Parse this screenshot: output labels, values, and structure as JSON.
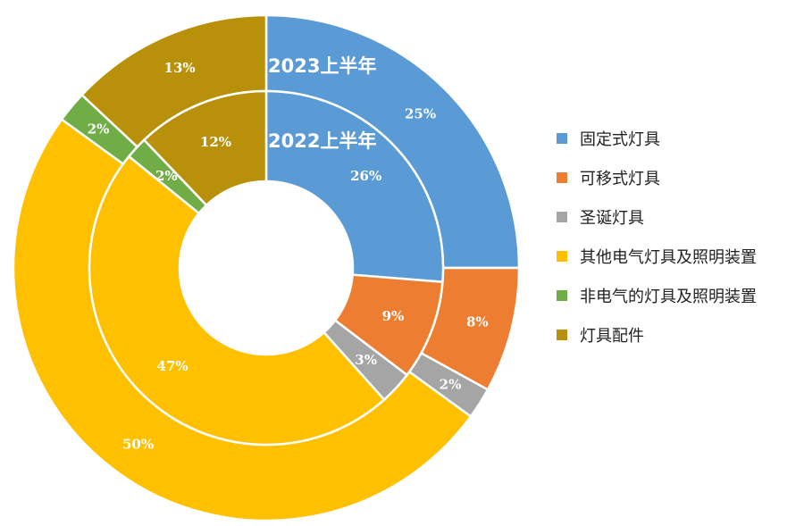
{
  "chart_data": {
    "type": "pie",
    "rings": [
      {
        "name": "2023上半年",
        "values": [
          25,
          8,
          2,
          50,
          2,
          13
        ],
        "labels": [
          "25%",
          "8%",
          "2%",
          "50%",
          "2%",
          "13%"
        ]
      },
      {
        "name": "2022上半年",
        "values": [
          26,
          9,
          3,
          47,
          2,
          12
        ],
        "labels": [
          "26%",
          "9%",
          "3%",
          "47%",
          "2%",
          "12%"
        ]
      }
    ],
    "categories": [
      "固定式灯具",
      "可移式灯具",
      "圣诞灯具",
      "其他电气灯具及照明装置",
      "非电气的灯具及照明装置",
      "灯具配件"
    ],
    "colors": [
      "#5B9BD5",
      "#ED7D31",
      "#A5A5A5",
      "#FFC000",
      "#70AD47",
      "#B8900A"
    ],
    "legend_position": "right"
  }
}
